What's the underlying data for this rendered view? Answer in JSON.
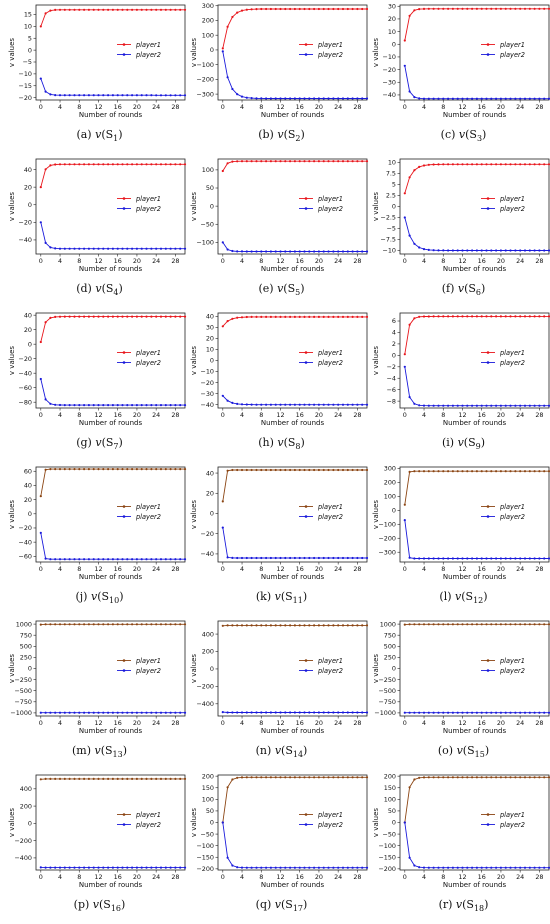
{
  "chart_data": [
    {
      "id": "a",
      "label_letter": "(a)",
      "subscript": "1",
      "type": "line",
      "xlabel": "Number of rounds",
      "ylabel": "v values",
      "xticks": [
        0,
        4,
        8,
        12,
        16,
        20,
        24,
        28
      ],
      "xlim": [
        -1,
        30
      ],
      "yticks": [
        15,
        10,
        5,
        0,
        -5,
        -10,
        -15,
        -20
      ],
      "ylim": [
        -21,
        19
      ],
      "legend": [
        "player1",
        "player2"
      ],
      "legend_position": "right",
      "series": [
        {
          "name": "player1",
          "color": "#e8151b",
          "start": 10,
          "end": 17,
          "shape": "exp"
        },
        {
          "name": "player2",
          "color": "#1a1adb",
          "start": -12,
          "end": -19,
          "shape": "exp"
        }
      ]
    },
    {
      "id": "b",
      "label_letter": "(b)",
      "subscript": "2",
      "type": "line",
      "xlabel": "Number of rounds",
      "ylabel": "v values",
      "xticks": [
        0,
        4,
        8,
        12,
        16,
        20,
        24,
        28
      ],
      "xlim": [
        -1,
        30
      ],
      "yticks": [
        300,
        200,
        100,
        0,
        -100,
        -200,
        -300
      ],
      "ylim": [
        -340,
        305
      ],
      "legend": [
        "player1",
        "player2"
      ],
      "legend_position": "right",
      "series": [
        {
          "name": "player1",
          "color": "#e8151b",
          "start": 10,
          "end": 278,
          "shape": "slow"
        },
        {
          "name": "player2",
          "color": "#1a1adb",
          "start": -10,
          "end": -330,
          "shape": "slow"
        }
      ]
    },
    {
      "id": "c",
      "label_letter": "(c)",
      "subscript": "3",
      "type": "line",
      "xlabel": "Number of rounds",
      "ylabel": "v values",
      "xticks": [
        0,
        4,
        8,
        12,
        16,
        20,
        24,
        28
      ],
      "xlim": [
        -1,
        30
      ],
      "yticks": [
        30,
        20,
        10,
        0,
        -10,
        -20,
        -30,
        -40
      ],
      "ylim": [
        -44,
        31
      ],
      "legend": [
        "player1",
        "player2"
      ],
      "legend_position": "right",
      "series": [
        {
          "name": "player1",
          "color": "#e8151b",
          "start": 3,
          "end": 28,
          "shape": "exp"
        },
        {
          "name": "player2",
          "color": "#1a1adb",
          "start": -17,
          "end": -43,
          "shape": "exp"
        }
      ]
    },
    {
      "id": "d",
      "label_letter": "(d)",
      "subscript": "4",
      "type": "line",
      "xlabel": "Number of rounds",
      "ylabel": "v values",
      "xticks": [
        0,
        4,
        8,
        12,
        16,
        20,
        24,
        28
      ],
      "xlim": [
        -1,
        30
      ],
      "yticks": [
        40,
        20,
        0,
        -20,
        -40
      ],
      "ylim": [
        -56,
        52
      ],
      "legend": [
        "player1",
        "player2"
      ],
      "legend_position": "right",
      "series": [
        {
          "name": "player1",
          "color": "#e8151b",
          "start": 20,
          "end": 46,
          "shape": "exp"
        },
        {
          "name": "player2",
          "color": "#1a1adb",
          "start": -20,
          "end": -50,
          "shape": "exp"
        }
      ]
    },
    {
      "id": "e",
      "label_letter": "(e)",
      "subscript": "5",
      "type": "line",
      "xlabel": "Number of rounds",
      "ylabel": "v values",
      "xticks": [
        0,
        4,
        8,
        12,
        16,
        20,
        24,
        28
      ],
      "xlim": [
        -1,
        30
      ],
      "yticks": [
        100,
        50,
        0,
        -50,
        -100
      ],
      "ylim": [
        -132,
        130
      ],
      "legend": [
        "player1",
        "player2"
      ],
      "legend_position": "right",
      "series": [
        {
          "name": "player1",
          "color": "#e8151b",
          "start": 97,
          "end": 124,
          "shape": "exp"
        },
        {
          "name": "player2",
          "color": "#1a1adb",
          "start": -100,
          "end": -125,
          "shape": "exp"
        }
      ]
    },
    {
      "id": "f",
      "label_letter": "(f)",
      "subscript": "6",
      "type": "line",
      "xlabel": "Number of rounds",
      "ylabel": "v values",
      "xticks": [
        0,
        4,
        8,
        12,
        16,
        20,
        24,
        28
      ],
      "xlim": [
        -1,
        30
      ],
      "yticks": [
        10.0,
        7.5,
        5.0,
        2.5,
        0.0,
        -2.5,
        -5.0,
        -7.5,
        -10.0
      ],
      "ylim": [
        -10.8,
        10.8
      ],
      "legend": [
        "player1",
        "player2"
      ],
      "legend_position": "right",
      "series": [
        {
          "name": "player1",
          "color": "#e8151b",
          "start": 3,
          "end": 9.6,
          "shape": "slow"
        },
        {
          "name": "player2",
          "color": "#1a1adb",
          "start": -2.5,
          "end": -10,
          "shape": "slow"
        }
      ]
    },
    {
      "id": "g",
      "label_letter": "(g)",
      "subscript": "7",
      "type": "line",
      "xlabel": "Number of rounds",
      "ylabel": "v values",
      "xticks": [
        0,
        4,
        8,
        12,
        16,
        20,
        24,
        28
      ],
      "xlim": [
        -1,
        30
      ],
      "yticks": [
        40,
        20,
        0,
        -20,
        -40,
        -60,
        -80
      ],
      "ylim": [
        -88,
        43
      ],
      "legend": [
        "player1",
        "player2"
      ],
      "legend_position": "right",
      "series": [
        {
          "name": "player1",
          "color": "#e8151b",
          "start": 3,
          "end": 38,
          "shape": "exp"
        },
        {
          "name": "player2",
          "color": "#1a1adb",
          "start": -48,
          "end": -84,
          "shape": "exp"
        }
      ]
    },
    {
      "id": "h",
      "label_letter": "(h)",
      "subscript": "8",
      "type": "line",
      "xlabel": "Number of rounds",
      "ylabel": "v values",
      "xticks": [
        0,
        4,
        8,
        12,
        16,
        20,
        24,
        28
      ],
      "xlim": [
        -1,
        30
      ],
      "yticks": [
        40,
        30,
        20,
        10,
        0,
        -10,
        -20,
        -30,
        -40
      ],
      "ylim": [
        -43,
        43
      ],
      "legend": [
        "player1",
        "player2"
      ],
      "legend_position": "right",
      "series": [
        {
          "name": "player1",
          "color": "#e8151b",
          "start": 31,
          "end": 39.5,
          "shape": "slow"
        },
        {
          "name": "player2",
          "color": "#1a1adb",
          "start": -32,
          "end": -40,
          "shape": "slow"
        }
      ]
    },
    {
      "id": "i",
      "label_letter": "(i)",
      "subscript": "9",
      "type": "line",
      "xlabel": "Number of rounds",
      "ylabel": "v values",
      "xticks": [
        0,
        4,
        8,
        12,
        16,
        20,
        24,
        28
      ],
      "xlim": [
        -1,
        30
      ],
      "yticks": [
        6,
        4,
        2,
        0,
        -2,
        -4,
        -6,
        -8
      ],
      "ylim": [
        -9.2,
        7.4
      ],
      "legend": [
        "player1",
        "player2"
      ],
      "legend_position": "right",
      "series": [
        {
          "name": "player1",
          "color": "#e8151b",
          "start": 0.2,
          "end": 6.8,
          "shape": "exp"
        },
        {
          "name": "player2",
          "color": "#1a1adb",
          "start": -2,
          "end": -8.8,
          "shape": "exp"
        }
      ]
    },
    {
      "id": "j",
      "label_letter": "(j)",
      "subscript": "10",
      "type": "line",
      "xlabel": "Number of rounds",
      "ylabel": "v values",
      "xticks": [
        0,
        4,
        8,
        12,
        16,
        20,
        24,
        28
      ],
      "xlim": [
        -1,
        30
      ],
      "yticks": [
        60,
        40,
        20,
        0,
        -20,
        -40,
        -60
      ],
      "ylim": [
        -68,
        66
      ],
      "legend": [
        "player1",
        "player2"
      ],
      "legend_position": "right",
      "series": [
        {
          "name": "player1",
          "color": "#8b4513",
          "start": 25,
          "end": 63,
          "shape": "fast"
        },
        {
          "name": "player2",
          "color": "#1a1adb",
          "start": -27,
          "end": -64,
          "shape": "fast"
        }
      ]
    },
    {
      "id": "k",
      "label_letter": "(k)",
      "subscript": "11",
      "type": "line",
      "xlabel": "Number of rounds",
      "ylabel": "v values",
      "xticks": [
        0,
        4,
        8,
        12,
        16,
        20,
        24,
        28
      ],
      "xlim": [
        -1,
        30
      ],
      "yticks": [
        40,
        20,
        0,
        -20,
        -40
      ],
      "ylim": [
        -48,
        46
      ],
      "legend": [
        "player1",
        "player2"
      ],
      "legend_position": "right",
      "series": [
        {
          "name": "player1",
          "color": "#8b4513",
          "start": 12,
          "end": 43,
          "shape": "fast"
        },
        {
          "name": "player2",
          "color": "#1a1adb",
          "start": -14,
          "end": -44,
          "shape": "fast"
        }
      ]
    },
    {
      "id": "l",
      "label_letter": "(l)",
      "subscript": "12",
      "type": "line",
      "xlabel": "Number of rounds",
      "ylabel": "v values",
      "xticks": [
        0,
        4,
        8,
        12,
        16,
        20,
        24,
        28
      ],
      "xlim": [
        -1,
        30
      ],
      "yticks": [
        300,
        200,
        100,
        0,
        -100,
        -200,
        -300
      ],
      "ylim": [
        -370,
        310
      ],
      "legend": [
        "player1",
        "player2"
      ],
      "legend_position": "right",
      "series": [
        {
          "name": "player1",
          "color": "#8b4513",
          "start": 40,
          "end": 280,
          "shape": "fast"
        },
        {
          "name": "player2",
          "color": "#1a1adb",
          "start": -70,
          "end": -345,
          "shape": "fast"
        }
      ]
    },
    {
      "id": "m",
      "label_letter": "(m)",
      "subscript": "13",
      "type": "line",
      "xlabel": "Number of rounds",
      "ylabel": "v values",
      "xticks": [
        0,
        4,
        8,
        12,
        16,
        20,
        24,
        28
      ],
      "xlim": [
        -1,
        30
      ],
      "yticks": [
        1000,
        750,
        500,
        250,
        0,
        -250,
        -500,
        -750,
        -1000
      ],
      "ylim": [
        -1070,
        1070
      ],
      "legend": [
        "player1",
        "player2"
      ],
      "legend_position": "right",
      "series": [
        {
          "name": "player1",
          "color": "#8b4513",
          "start": 990,
          "end": 995,
          "shape": "flat"
        },
        {
          "name": "player2",
          "color": "#1a1adb",
          "start": -995,
          "end": -995,
          "shape": "flat"
        }
      ]
    },
    {
      "id": "n",
      "label_letter": "(n)",
      "subscript": "14",
      "type": "line",
      "xlabel": "Number of rounds",
      "ylabel": "v values",
      "xticks": [
        0,
        4,
        8,
        12,
        16,
        20,
        24,
        28
      ],
      "xlim": [
        -1,
        30
      ],
      "yticks": [
        400,
        200,
        0,
        -200,
        -400
      ],
      "ylim": [
        -540,
        550
      ],
      "legend": [
        "player1",
        "player2"
      ],
      "legend_position": "right",
      "series": [
        {
          "name": "player1",
          "color": "#8b4513",
          "start": 495,
          "end": 500,
          "shape": "flat"
        },
        {
          "name": "player2",
          "color": "#1a1adb",
          "start": -495,
          "end": -500,
          "shape": "flat"
        }
      ]
    },
    {
      "id": "o",
      "label_letter": "(o)",
      "subscript": "15",
      "type": "line",
      "xlabel": "Number of rounds",
      "ylabel": "v values",
      "xticks": [
        0,
        4,
        8,
        12,
        16,
        20,
        24,
        28
      ],
      "xlim": [
        -1,
        30
      ],
      "yticks": [
        1000,
        750,
        500,
        250,
        0,
        -250,
        -500,
        -750,
        -1000
      ],
      "ylim": [
        -1070,
        1070
      ],
      "legend": [
        "player1",
        "player2"
      ],
      "legend_position": "right",
      "series": [
        {
          "name": "player1",
          "color": "#8b4513",
          "start": 990,
          "end": 995,
          "shape": "flat"
        },
        {
          "name": "player2",
          "color": "#1a1adb",
          "start": -995,
          "end": -995,
          "shape": "flat"
        }
      ]
    },
    {
      "id": "p",
      "label_letter": "(p)",
      "subscript": "16",
      "type": "line",
      "xlabel": "Number of rounds",
      "ylabel": "v values",
      "xticks": [
        0,
        4,
        8,
        12,
        16,
        20,
        24,
        28
      ],
      "xlim": [
        -1,
        30
      ],
      "yticks": [
        400,
        200,
        0,
        -200,
        -400
      ],
      "ylim": [
        -540,
        560
      ],
      "legend": [
        "player1",
        "player2"
      ],
      "legend_position": "right",
      "series": [
        {
          "name": "player1",
          "color": "#8b4513",
          "start": 510,
          "end": 515,
          "shape": "flat"
        },
        {
          "name": "player2",
          "color": "#1a1adb",
          "start": -510,
          "end": -512,
          "shape": "flat"
        }
      ]
    },
    {
      "id": "q",
      "label_letter": "(q)",
      "subscript": "17",
      "type": "line",
      "xlabel": "Number of rounds",
      "ylabel": "v values",
      "xticks": [
        0,
        4,
        8,
        12,
        16,
        20,
        24,
        28
      ],
      "xlim": [
        -1,
        30
      ],
      "yticks": [
        200,
        150,
        100,
        50,
        0,
        -50,
        -100,
        -150,
        -200
      ],
      "ylim": [
        -205,
        205
      ],
      "legend": [
        "player1",
        "player2"
      ],
      "legend_position": "right",
      "series": [
        {
          "name": "player1",
          "color": "#8b4513",
          "start": 0,
          "end": 195,
          "shape": "exp"
        },
        {
          "name": "player2",
          "color": "#1a1adb",
          "start": 0,
          "end": -195,
          "shape": "exp"
        }
      ]
    },
    {
      "id": "r",
      "label_letter": "(r)",
      "subscript": "18",
      "type": "line",
      "xlabel": "Number of rounds",
      "ylabel": "v values",
      "xticks": [
        0,
        4,
        8,
        12,
        16,
        20,
        24,
        28
      ],
      "xlim": [
        -1,
        30
      ],
      "yticks": [
        200,
        150,
        100,
        50,
        0,
        -50,
        -100,
        -150,
        -200
      ],
      "ylim": [
        -205,
        205
      ],
      "legend": [
        "player1",
        "player2"
      ],
      "legend_position": "right",
      "series": [
        {
          "name": "player1",
          "color": "#8b4513",
          "start": 0,
          "end": 195,
          "shape": "exp"
        },
        {
          "name": "player2",
          "color": "#1a1adb",
          "start": 0,
          "end": -195,
          "shape": "exp"
        }
      ]
    }
  ],
  "caption_prefix": "v",
  "caption_set": "S"
}
